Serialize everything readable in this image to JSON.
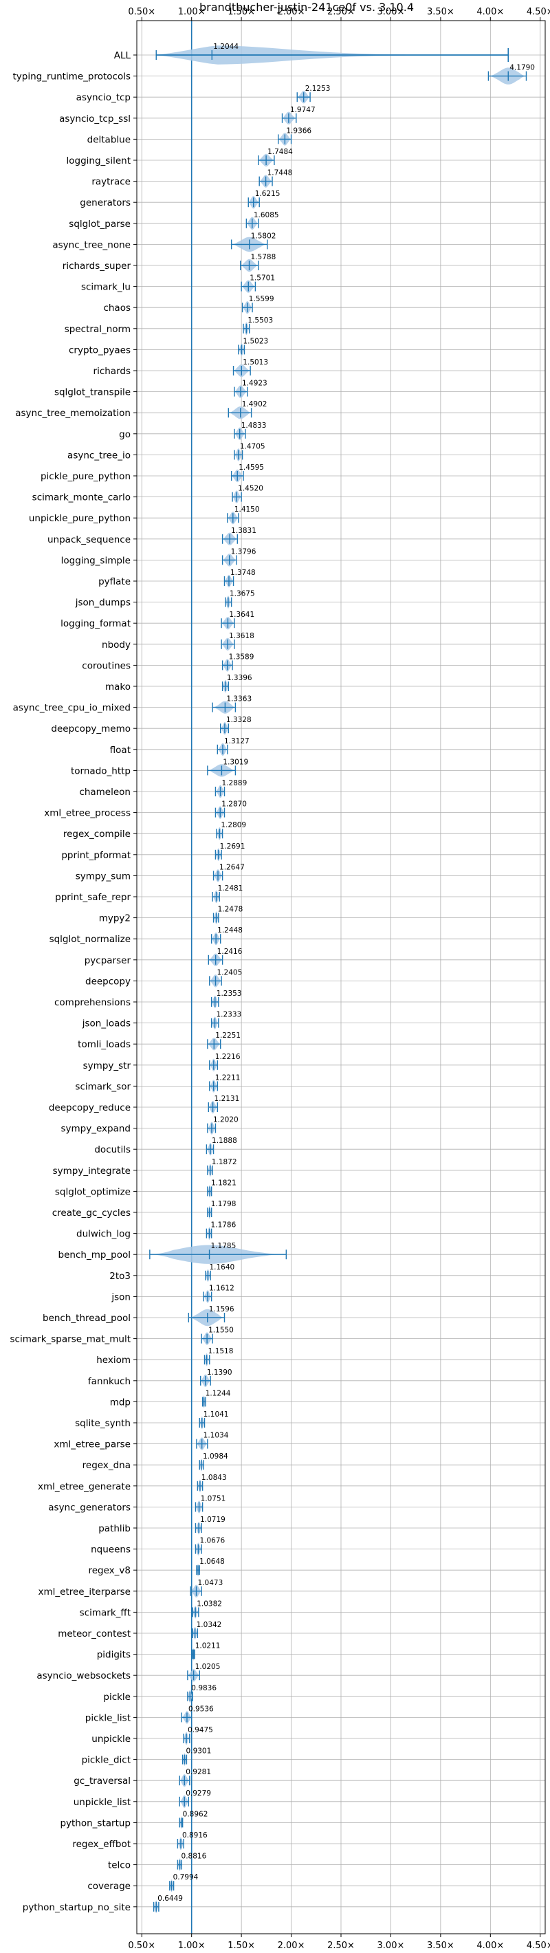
{
  "chart_data": {
    "type": "violin",
    "title": "brandtbucher-justin-241ce0f vs. 3.10.4",
    "xlabel": "",
    "ylabel": "",
    "xlim": [
      0.45,
      4.55
    ],
    "xticks": [
      0.5,
      1.0,
      1.5,
      2.0,
      2.5,
      3.0,
      3.5,
      4.0,
      4.5
    ],
    "xtick_labels": [
      "0.50×",
      "1.00×",
      "1.50×",
      "2.00×",
      "2.50×",
      "3.00×",
      "3.50×",
      "4.00×",
      "4.50×"
    ],
    "reference_line": 1.0,
    "grid": true,
    "colors": {
      "violin": "#a9c9e6",
      "line": "#1f77b4",
      "grid": "#b0b0b0",
      "ref": "#1f77b4"
    },
    "benchmarks": [
      {
        "name": "ALL",
        "value": 1.2044,
        "label": "1.2044",
        "min": 0.6449,
        "max": 4.179,
        "w": 0.45
      },
      {
        "name": "typing_runtime_protocols",
        "value": 4.179,
        "label": "4.1790",
        "min": 3.98,
        "max": 4.36,
        "w": 0.4
      },
      {
        "name": "asyncio_tcp",
        "value": 2.1253,
        "label": "2.1253",
        "min": 2.06,
        "max": 2.19,
        "w": 0.3
      },
      {
        "name": "asyncio_tcp_ssl",
        "value": 1.9747,
        "label": "1.9747",
        "min": 1.91,
        "max": 2.05,
        "w": 0.3
      },
      {
        "name": "deltablue",
        "value": 1.9366,
        "label": "1.9366",
        "min": 1.87,
        "max": 2.0,
        "w": 0.3
      },
      {
        "name": "logging_silent",
        "value": 1.7484,
        "label": "1.7484",
        "min": 1.67,
        "max": 1.83,
        "w": 0.3
      },
      {
        "name": "raytrace",
        "value": 1.7448,
        "label": "1.7448",
        "min": 1.68,
        "max": 1.81,
        "w": 0.3
      },
      {
        "name": "generators",
        "value": 1.6215,
        "label": "1.6215",
        "min": 1.57,
        "max": 1.68,
        "w": 0.3
      },
      {
        "name": "sqlglot_parse",
        "value": 1.6085,
        "label": "1.6085",
        "min": 1.55,
        "max": 1.67,
        "w": 0.3
      },
      {
        "name": "async_tree_none",
        "value": 1.5802,
        "label": "1.5802",
        "min": 1.4,
        "max": 1.76,
        "w": 0.35
      },
      {
        "name": "richards_super",
        "value": 1.5788,
        "label": "1.5788",
        "min": 1.49,
        "max": 1.67,
        "w": 0.3
      },
      {
        "name": "scimark_lu",
        "value": 1.5701,
        "label": "1.5701",
        "min": 1.5,
        "max": 1.64,
        "w": 0.3
      },
      {
        "name": "chaos",
        "value": 1.5599,
        "label": "1.5599",
        "min": 1.51,
        "max": 1.61,
        "w": 0.3
      },
      {
        "name": "spectral_norm",
        "value": 1.5503,
        "label": "1.5503",
        "min": 1.52,
        "max": 1.58,
        "w": 0.3
      },
      {
        "name": "crypto_pyaes",
        "value": 1.5023,
        "label": "1.5023",
        "min": 1.47,
        "max": 1.53,
        "w": 0.3
      },
      {
        "name": "richards",
        "value": 1.5013,
        "label": "1.5013",
        "min": 1.42,
        "max": 1.59,
        "w": 0.3
      },
      {
        "name": "sqlglot_transpile",
        "value": 1.4923,
        "label": "1.4923",
        "min": 1.43,
        "max": 1.56,
        "w": 0.3
      },
      {
        "name": "async_tree_memoization",
        "value": 1.4902,
        "label": "1.4902",
        "min": 1.37,
        "max": 1.6,
        "w": 0.3
      },
      {
        "name": "go",
        "value": 1.4833,
        "label": "1.4833",
        "min": 1.43,
        "max": 1.54,
        "w": 0.3
      },
      {
        "name": "async_tree_io",
        "value": 1.4705,
        "label": "1.4705",
        "min": 1.43,
        "max": 1.51,
        "w": 0.3
      },
      {
        "name": "pickle_pure_python",
        "value": 1.4595,
        "label": "1.4595",
        "min": 1.4,
        "max": 1.52,
        "w": 0.3
      },
      {
        "name": "scimark_monte_carlo",
        "value": 1.452,
        "label": "1.4520",
        "min": 1.41,
        "max": 1.5,
        "w": 0.3
      },
      {
        "name": "unpickle_pure_python",
        "value": 1.415,
        "label": "1.4150",
        "min": 1.36,
        "max": 1.47,
        "w": 0.3
      },
      {
        "name": "unpack_sequence",
        "value": 1.3831,
        "label": "1.3831",
        "min": 1.31,
        "max": 1.46,
        "w": 0.3
      },
      {
        "name": "logging_simple",
        "value": 1.3796,
        "label": "1.3796",
        "min": 1.31,
        "max": 1.45,
        "w": 0.3
      },
      {
        "name": "pyflate",
        "value": 1.3748,
        "label": "1.3748",
        "min": 1.33,
        "max": 1.42,
        "w": 0.3
      },
      {
        "name": "json_dumps",
        "value": 1.3675,
        "label": "1.3675",
        "min": 1.34,
        "max": 1.4,
        "w": 0.3
      },
      {
        "name": "logging_format",
        "value": 1.3641,
        "label": "1.3641",
        "min": 1.3,
        "max": 1.43,
        "w": 0.3
      },
      {
        "name": "nbody",
        "value": 1.3618,
        "label": "1.3618",
        "min": 1.3,
        "max": 1.43,
        "w": 0.3
      },
      {
        "name": "coroutines",
        "value": 1.3589,
        "label": "1.3589",
        "min": 1.31,
        "max": 1.41,
        "w": 0.3
      },
      {
        "name": "mako",
        "value": 1.3396,
        "label": "1.3396",
        "min": 1.31,
        "max": 1.37,
        "w": 0.3
      },
      {
        "name": "async_tree_cpu_io_mixed",
        "value": 1.3363,
        "label": "1.3363",
        "min": 1.21,
        "max": 1.44,
        "w": 0.3
      },
      {
        "name": "deepcopy_memo",
        "value": 1.3328,
        "label": "1.3328",
        "min": 1.29,
        "max": 1.37,
        "w": 0.3
      },
      {
        "name": "float",
        "value": 1.3127,
        "label": "1.3127",
        "min": 1.26,
        "max": 1.36,
        "w": 0.3
      },
      {
        "name": "tornado_http",
        "value": 1.3019,
        "label": "1.3019",
        "min": 1.16,
        "max": 1.44,
        "w": 0.3
      },
      {
        "name": "chameleon",
        "value": 1.2889,
        "label": "1.2889",
        "min": 1.24,
        "max": 1.33,
        "w": 0.3
      },
      {
        "name": "xml_etree_process",
        "value": 1.287,
        "label": "1.2870",
        "min": 1.24,
        "max": 1.33,
        "w": 0.3
      },
      {
        "name": "regex_compile",
        "value": 1.2809,
        "label": "1.2809",
        "min": 1.25,
        "max": 1.31,
        "w": 0.3
      },
      {
        "name": "pprint_pformat",
        "value": 1.2691,
        "label": "1.2691",
        "min": 1.24,
        "max": 1.3,
        "w": 0.3
      },
      {
        "name": "sympy_sum",
        "value": 1.2647,
        "label": "1.2647",
        "min": 1.22,
        "max": 1.31,
        "w": 0.3
      },
      {
        "name": "pprint_safe_repr",
        "value": 1.2481,
        "label": "1.2481",
        "min": 1.21,
        "max": 1.28,
        "w": 0.3
      },
      {
        "name": "mypy2",
        "value": 1.2478,
        "label": "1.2478",
        "min": 1.22,
        "max": 1.27,
        "w": 0.3
      },
      {
        "name": "sqlglot_normalize",
        "value": 1.2448,
        "label": "1.2448",
        "min": 1.2,
        "max": 1.29,
        "w": 0.3
      },
      {
        "name": "pycparser",
        "value": 1.2416,
        "label": "1.2416",
        "min": 1.17,
        "max": 1.31,
        "w": 0.3
      },
      {
        "name": "deepcopy",
        "value": 1.2405,
        "label": "1.2405",
        "min": 1.18,
        "max": 1.3,
        "w": 0.3
      },
      {
        "name": "comprehensions",
        "value": 1.2353,
        "label": "1.2353",
        "min": 1.2,
        "max": 1.27,
        "w": 0.3
      },
      {
        "name": "json_loads",
        "value": 1.2333,
        "label": "1.2333",
        "min": 1.2,
        "max": 1.27,
        "w": 0.3
      },
      {
        "name": "tomli_loads",
        "value": 1.2251,
        "label": "1.2251",
        "min": 1.16,
        "max": 1.29,
        "w": 0.3
      },
      {
        "name": "sympy_str",
        "value": 1.2216,
        "label": "1.2216",
        "min": 1.18,
        "max": 1.26,
        "w": 0.3
      },
      {
        "name": "scimark_sor",
        "value": 1.2211,
        "label": "1.2211",
        "min": 1.18,
        "max": 1.26,
        "w": 0.3
      },
      {
        "name": "deepcopy_reduce",
        "value": 1.2131,
        "label": "1.2131",
        "min": 1.17,
        "max": 1.26,
        "w": 0.3
      },
      {
        "name": "sympy_expand",
        "value": 1.202,
        "label": "1.2020",
        "min": 1.16,
        "max": 1.24,
        "w": 0.3
      },
      {
        "name": "docutils",
        "value": 1.1888,
        "label": "1.1888",
        "min": 1.15,
        "max": 1.22,
        "w": 0.3
      },
      {
        "name": "sympy_integrate",
        "value": 1.1872,
        "label": "1.1872",
        "min": 1.16,
        "max": 1.21,
        "w": 0.3
      },
      {
        "name": "sqlglot_optimize",
        "value": 1.1821,
        "label": "1.1821",
        "min": 1.16,
        "max": 1.2,
        "w": 0.3
      },
      {
        "name": "create_gc_cycles",
        "value": 1.1798,
        "label": "1.1798",
        "min": 1.16,
        "max": 1.2,
        "w": 0.3
      },
      {
        "name": "dulwich_log",
        "value": 1.1786,
        "label": "1.1786",
        "min": 1.15,
        "max": 1.2,
        "w": 0.3
      },
      {
        "name": "bench_mp_pool",
        "value": 1.1785,
        "label": "1.1785",
        "min": 0.58,
        "max": 1.95,
        "w": 0.45
      },
      {
        "name": "2to3",
        "value": 1.164,
        "label": "1.1640",
        "min": 1.14,
        "max": 1.19,
        "w": 0.3
      },
      {
        "name": "json",
        "value": 1.1612,
        "label": "1.1612",
        "min": 1.12,
        "max": 1.2,
        "w": 0.3
      },
      {
        "name": "bench_thread_pool",
        "value": 1.1596,
        "label": "1.1596",
        "min": 0.97,
        "max": 1.33,
        "w": 0.4
      },
      {
        "name": "scimark_sparse_mat_mult",
        "value": 1.155,
        "label": "1.1550",
        "min": 1.1,
        "max": 1.21,
        "w": 0.3
      },
      {
        "name": "hexiom",
        "value": 1.1518,
        "label": "1.1518",
        "min": 1.13,
        "max": 1.18,
        "w": 0.3
      },
      {
        "name": "fannkuch",
        "value": 1.139,
        "label": "1.1390",
        "min": 1.09,
        "max": 1.19,
        "w": 0.3
      },
      {
        "name": "mdp",
        "value": 1.1244,
        "label": "1.1244",
        "min": 1.11,
        "max": 1.14,
        "w": 0.3
      },
      {
        "name": "sqlite_synth",
        "value": 1.1041,
        "label": "1.1041",
        "min": 1.08,
        "max": 1.13,
        "w": 0.3
      },
      {
        "name": "xml_etree_parse",
        "value": 1.1034,
        "label": "1.1034",
        "min": 1.05,
        "max": 1.16,
        "w": 0.3
      },
      {
        "name": "regex_dna",
        "value": 1.0984,
        "label": "1.0984",
        "min": 1.08,
        "max": 1.12,
        "w": 0.3
      },
      {
        "name": "xml_etree_generate",
        "value": 1.0843,
        "label": "1.0843",
        "min": 1.06,
        "max": 1.11,
        "w": 0.3
      },
      {
        "name": "async_generators",
        "value": 1.0751,
        "label": "1.0751",
        "min": 1.04,
        "max": 1.11,
        "w": 0.3
      },
      {
        "name": "pathlib",
        "value": 1.0719,
        "label": "1.0719",
        "min": 1.04,
        "max": 1.1,
        "w": 0.3
      },
      {
        "name": "nqueens",
        "value": 1.0676,
        "label": "1.0676",
        "min": 1.04,
        "max": 1.1,
        "w": 0.3
      },
      {
        "name": "regex_v8",
        "value": 1.0648,
        "label": "1.0648",
        "min": 1.05,
        "max": 1.08,
        "w": 0.3
      },
      {
        "name": "xml_etree_iterparse",
        "value": 1.0473,
        "label": "1.0473",
        "min": 0.99,
        "max": 1.1,
        "w": 0.3
      },
      {
        "name": "scimark_fft",
        "value": 1.0382,
        "label": "1.0382",
        "min": 1.01,
        "max": 1.07,
        "w": 0.3
      },
      {
        "name": "meteor_contest",
        "value": 1.0342,
        "label": "1.0342",
        "min": 1.01,
        "max": 1.06,
        "w": 0.3
      },
      {
        "name": "pidigits",
        "value": 1.0211,
        "label": "1.0211",
        "min": 1.01,
        "max": 1.03,
        "w": 0.3
      },
      {
        "name": "asyncio_websockets",
        "value": 1.0205,
        "label": "1.0205",
        "min": 0.96,
        "max": 1.08,
        "w": 0.3
      },
      {
        "name": "pickle",
        "value": 0.9836,
        "label": "0.9836",
        "min": 0.96,
        "max": 1.01,
        "w": 0.3
      },
      {
        "name": "pickle_list",
        "value": 0.9536,
        "label": "0.9536",
        "min": 0.9,
        "max": 1.0,
        "w": 0.3
      },
      {
        "name": "unpickle",
        "value": 0.9475,
        "label": "0.9475",
        "min": 0.92,
        "max": 0.98,
        "w": 0.3
      },
      {
        "name": "pickle_dict",
        "value": 0.9301,
        "label": "0.9301",
        "min": 0.91,
        "max": 0.95,
        "w": 0.3
      },
      {
        "name": "gc_traversal",
        "value": 0.9281,
        "label": "0.9281",
        "min": 0.88,
        "max": 0.98,
        "w": 0.3
      },
      {
        "name": "unpickle_list",
        "value": 0.9279,
        "label": "0.9279",
        "min": 0.88,
        "max": 0.97,
        "w": 0.3
      },
      {
        "name": "python_startup",
        "value": 0.8962,
        "label": "0.8962",
        "min": 0.88,
        "max": 0.91,
        "w": 0.3
      },
      {
        "name": "regex_effbot",
        "value": 0.8916,
        "label": "0.8916",
        "min": 0.86,
        "max": 0.92,
        "w": 0.3
      },
      {
        "name": "telco",
        "value": 0.8816,
        "label": "0.8816",
        "min": 0.86,
        "max": 0.9,
        "w": 0.3
      },
      {
        "name": "coverage",
        "value": 0.7994,
        "label": "0.7994",
        "min": 0.78,
        "max": 0.82,
        "w": 0.3
      },
      {
        "name": "python_startup_no_site",
        "value": 0.6449,
        "label": "0.6449",
        "min": 0.62,
        "max": 0.67,
        "w": 0.3
      }
    ]
  }
}
